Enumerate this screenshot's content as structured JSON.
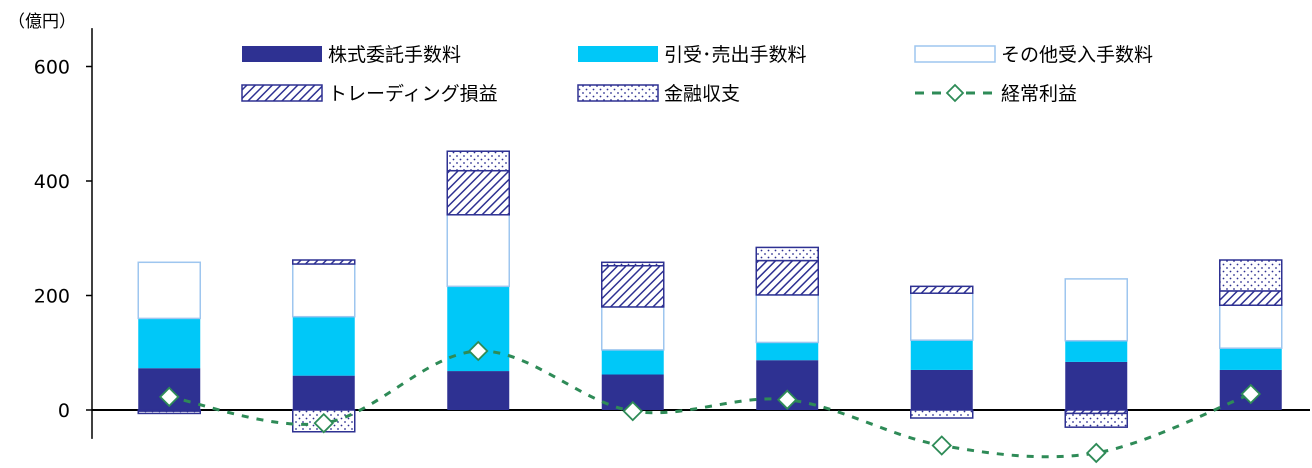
{
  "chart_data": {
    "type": "bar",
    "stacked": true,
    "unit_label": "（億円）",
    "ylim": [
      -40,
      660
    ],
    "yticks": [
      0,
      200,
      400,
      600
    ],
    "ytick_labels": [
      "0",
      "200",
      "400",
      "600"
    ],
    "categories": [
      "",
      "",
      "",
      "",
      "",
      "",
      "",
      ""
    ],
    "colors": {
      "commission": "#2e3192",
      "underwriting": "#00c8f8",
      "other": "#ffffff",
      "other_border": "#9ec6ef",
      "trading": "#2e3192",
      "financial": "#2e3192",
      "ordinary_profit": "#2e8b57"
    },
    "series": [
      {
        "key": "commission",
        "name": "株式委託手数料",
        "pattern": "solid",
        "values": [
          73,
          60,
          68,
          62,
          87,
          70,
          84,
          70
        ]
      },
      {
        "key": "underwriting",
        "name": "引受･売出手数料",
        "pattern": "solid",
        "values": [
          87,
          103,
          148,
          43,
          31,
          52,
          37,
          38
        ]
      },
      {
        "key": "other",
        "name": "その他受入手数料",
        "pattern": "outline",
        "values": [
          98,
          92,
          125,
          75,
          83,
          82,
          108,
          75
        ]
      },
      {
        "key": "trading",
        "name": "トレーディング損益",
        "pattern": "hatch",
        "values": [
          -2,
          7,
          77,
          72,
          60,
          12,
          -6,
          25
        ]
      },
      {
        "key": "financial",
        "name": "金融収支",
        "pattern": "dots",
        "values": [
          -4,
          -38,
          34,
          6,
          23,
          -14,
          -24,
          54
        ]
      }
    ],
    "line": {
      "key": "ordinary_profit",
      "name": "経常利益",
      "values": [
        23,
        -23,
        103,
        -2,
        18,
        -62,
        -75,
        28
      ]
    },
    "legend_position": "top"
  }
}
